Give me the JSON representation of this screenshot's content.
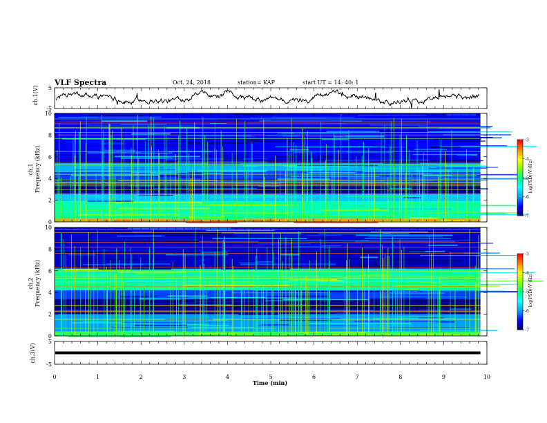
{
  "header": {
    "title": "VLF Spectra",
    "date": "Oct. 24, 2018",
    "station": "station= KAP",
    "start_time": "start  UT =   14: 40: 1"
  },
  "chart_data": {
    "type": "heatmap",
    "x_axis": {
      "label": "Time  (min)",
      "range": [
        0,
        10
      ],
      "ticks": [
        "0",
        "1",
        "2",
        "3",
        "4",
        "5",
        "6",
        "7",
        "8",
        "9",
        "10"
      ]
    },
    "panels": [
      {
        "name": "ch1-waveform",
        "type": "line",
        "ylabel": "ch.1(V)",
        "ylim": [
          -5,
          5
        ],
        "ticks": [
          "5",
          "-5"
        ]
      },
      {
        "name": "ch1-spectrogram",
        "type": "heatmap",
        "ylabel_line1": "ch.1",
        "ylabel_line2": "Frequency  (kHz)",
        "ylim": [
          0,
          10
        ],
        "ticks": [
          "0",
          "2",
          "4",
          "6",
          "8",
          "10"
        ],
        "bands": [
          {
            "from": 0.0,
            "to": 0.3,
            "level": -3.6
          },
          {
            "from": 0.3,
            "to": 0.6,
            "level": -5.0
          },
          {
            "from": 0.6,
            "to": 1.9,
            "level": -5.2
          },
          {
            "from": 1.9,
            "to": 2.5,
            "level": -5.8
          },
          {
            "from": 2.5,
            "to": 3.4,
            "level": -6.9
          },
          {
            "from": 3.4,
            "to": 4.6,
            "level": -6.3
          },
          {
            "from": 4.6,
            "to": 5.4,
            "level": -5.9
          },
          {
            "from": 5.4,
            "to": 6.3,
            "level": -6.6
          },
          {
            "from": 6.3,
            "to": 10.0,
            "level": -6.5
          }
        ],
        "colorbar": {
          "label": "log(PSD)(V²/Hz)",
          "range": [
            -7,
            -3
          ],
          "ticks": [
            "-3",
            "-4",
            "-5",
            "-6",
            "-7"
          ]
        }
      },
      {
        "name": "ch2-spectrogram",
        "type": "heatmap",
        "ylabel_line1": "ch.2",
        "ylabel_line2": "Frequency  (kHz)",
        "ylim": [
          0,
          10
        ],
        "ticks": [
          "0",
          "2",
          "4",
          "6",
          "8",
          "10"
        ],
        "bands": [
          {
            "from": 0.0,
            "to": 0.4,
            "level": -4.8
          },
          {
            "from": 0.4,
            "to": 2.0,
            "level": -6.0
          },
          {
            "from": 2.0,
            "to": 3.4,
            "level": -6.9
          },
          {
            "from": 3.4,
            "to": 4.2,
            "level": -6.3
          },
          {
            "from": 4.2,
            "to": 6.2,
            "level": -5.1
          },
          {
            "from": 6.2,
            "to": 10.0,
            "level": -6.7
          }
        ],
        "colorbar": {
          "label": "log(PSD)(V²/Hz)",
          "range": [
            -7,
            -3
          ],
          "ticks": [
            "-3",
            "-4",
            "-5",
            "-6",
            "-7"
          ]
        }
      },
      {
        "name": "ch3-waveform",
        "type": "line",
        "ylabel": "ch.3(V)",
        "ylim": [
          -5,
          5
        ],
        "ticks": [
          "5",
          "-5"
        ],
        "constant_value": 0
      }
    ],
    "colormap": [
      "#000070",
      "#0000ff",
      "#00a0ff",
      "#00ffff",
      "#00ff80",
      "#80ff00",
      "#ffff00",
      "#ff8000",
      "#ff0000",
      "#ffffff"
    ]
  }
}
